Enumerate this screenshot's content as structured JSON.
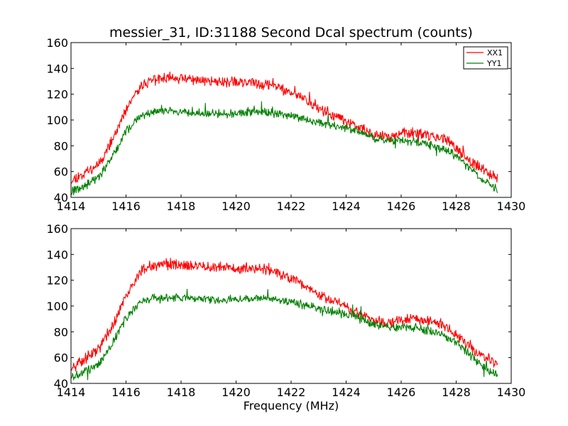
{
  "chart_data": [
    {
      "type": "line",
      "title": "messier_31, ID:31188 Second Dcal spectrum (counts)",
      "xlabel": "",
      "ylabel": "",
      "xlim": [
        1414,
        1430
      ],
      "ylim": [
        40,
        160
      ],
      "xticks": [
        "1414",
        "1416",
        "1418",
        "1420",
        "1422",
        "1424",
        "1426",
        "1428",
        "1430"
      ],
      "yticks": [
        "40",
        "60",
        "80",
        "100",
        "120",
        "140",
        "160"
      ],
      "legend": "top-right",
      "grid": false,
      "series": [
        {
          "name": "XX1",
          "color": "#ff0000",
          "x": [
            1414.0,
            1414.5,
            1415.0,
            1415.5,
            1416.0,
            1416.3,
            1416.6,
            1417.0,
            1417.5,
            1418.0,
            1418.5,
            1419.0,
            1419.5,
            1420.0,
            1420.5,
            1421.0,
            1421.5,
            1422.0,
            1422.5,
            1423.0,
            1423.5,
            1424.0,
            1424.5,
            1425.0,
            1425.5,
            1426.0,
            1426.5,
            1427.0,
            1427.5,
            1428.0,
            1428.5,
            1429.0,
            1429.5
          ],
          "values": [
            53,
            59,
            66,
            84,
            108,
            118,
            128,
            131,
            133,
            132,
            131,
            130,
            130,
            129,
            129,
            128,
            126,
            121,
            116,
            109,
            104,
            99,
            94,
            89,
            87,
            89,
            90,
            88,
            86,
            78,
            68,
            61,
            55
          ]
        },
        {
          "name": "YY1",
          "color": "#008000",
          "x": [
            1414.0,
            1414.5,
            1415.0,
            1415.5,
            1416.0,
            1416.3,
            1416.6,
            1417.0,
            1417.5,
            1418.0,
            1418.5,
            1419.0,
            1419.5,
            1420.0,
            1420.5,
            1421.0,
            1421.5,
            1422.0,
            1422.5,
            1423.0,
            1423.5,
            1424.0,
            1424.5,
            1425.0,
            1425.5,
            1426.0,
            1426.5,
            1427.0,
            1427.5,
            1428.0,
            1428.5,
            1429.0,
            1429.5
          ],
          "values": [
            44,
            49,
            55,
            71,
            91,
            98,
            104,
            106,
            107,
            106,
            105,
            105,
            105,
            105,
            106,
            106,
            105,
            103,
            101,
            98,
            96,
            93,
            91,
            86,
            84,
            84,
            83,
            81,
            78,
            72,
            62,
            53,
            46
          ]
        }
      ]
    },
    {
      "type": "line",
      "title": "",
      "xlabel": "Frequency (MHz)",
      "ylabel": "",
      "xlim": [
        1414,
        1430
      ],
      "ylim": [
        40,
        160
      ],
      "xticks": [
        "1414",
        "1416",
        "1418",
        "1420",
        "1422",
        "1424",
        "1426",
        "1428",
        "1430"
      ],
      "yticks": [
        "40",
        "60",
        "80",
        "100",
        "120",
        "140",
        "160"
      ],
      "grid": false,
      "series": [
        {
          "color": "#ff0000",
          "x": [
            1414.0,
            1414.5,
            1415.0,
            1415.5,
            1416.0,
            1416.3,
            1416.6,
            1417.0,
            1417.5,
            1418.0,
            1418.5,
            1419.0,
            1419.5,
            1420.0,
            1420.5,
            1421.0,
            1421.5,
            1422.0,
            1422.5,
            1423.0,
            1423.5,
            1424.0,
            1424.5,
            1425.0,
            1425.5,
            1426.0,
            1426.5,
            1427.0,
            1427.5,
            1428.0,
            1428.5,
            1429.0,
            1429.5
          ],
          "values": [
            53,
            59,
            66,
            84,
            108,
            118,
            128,
            131,
            133,
            132,
            131,
            130,
            130,
            129,
            129,
            128,
            126,
            121,
            116,
            109,
            104,
            99,
            94,
            89,
            87,
            89,
            90,
            88,
            86,
            78,
            68,
            61,
            55
          ]
        },
        {
          "color": "#008000",
          "x": [
            1414.0,
            1414.5,
            1415.0,
            1415.5,
            1416.0,
            1416.3,
            1416.6,
            1417.0,
            1417.5,
            1418.0,
            1418.5,
            1419.0,
            1419.5,
            1420.0,
            1420.5,
            1421.0,
            1421.5,
            1422.0,
            1422.5,
            1423.0,
            1423.5,
            1424.0,
            1424.5,
            1425.0,
            1425.5,
            1426.0,
            1426.5,
            1427.0,
            1427.5,
            1428.0,
            1428.5,
            1429.0,
            1429.5
          ],
          "values": [
            44,
            49,
            55,
            71,
            91,
            98,
            104,
            106,
            107,
            106,
            105,
            105,
            105,
            105,
            106,
            106,
            105,
            103,
            101,
            98,
            96,
            93,
            91,
            86,
            84,
            84,
            83,
            81,
            78,
            72,
            62,
            53,
            46
          ]
        }
      ]
    }
  ]
}
